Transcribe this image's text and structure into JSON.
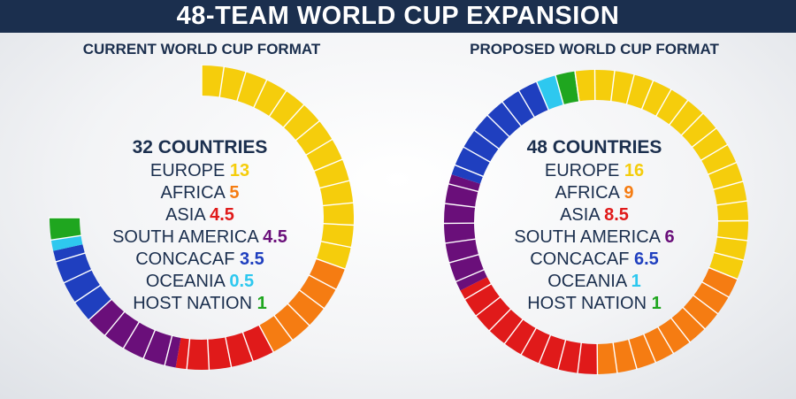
{
  "title": "48-TEAM WORLD CUP EXPANSION",
  "colors": {
    "banner": "#1b2f4e",
    "EUROPE": "#f5cd0c",
    "AFRICA": "#f57c12",
    "ASIA": "#e01a1a",
    "SOUTH AMERICA": "#6a0f7a",
    "CONCACAF": "#1f3fbf",
    "OCEANIA": "#2ec8ef",
    "HOST NATION": "#1fa61f"
  },
  "chart_data": [
    {
      "type": "pie",
      "title": "CURRENT WORLD CUP FORMAT",
      "total_label": "32 COUNTRIES",
      "total_slots": 32,
      "categories": [
        "EUROPE",
        "AFRICA",
        "ASIA",
        "SOUTH AMERICA",
        "CONCACAF",
        "OCEANIA",
        "HOST NATION"
      ],
      "values": [
        13,
        5,
        4.5,
        4.5,
        3.5,
        0.5,
        1
      ],
      "display_values": [
        "13",
        "5",
        "4.5",
        "4.5",
        "3.5",
        "0.5",
        "1"
      ]
    },
    {
      "type": "pie",
      "title": "PROPOSED WORLD CUP FORMAT",
      "total_label": "48 COUNTRIES",
      "total_slots": 48,
      "categories": [
        "EUROPE",
        "AFRICA",
        "ASIA",
        "SOUTH AMERICA",
        "CONCACAF",
        "OCEANIA",
        "HOST NATION"
      ],
      "values": [
        16,
        9,
        8.5,
        6,
        6.5,
        1,
        1
      ],
      "display_values": [
        "16",
        "9",
        "8.5",
        "6",
        "6.5",
        "1",
        "1"
      ]
    }
  ]
}
